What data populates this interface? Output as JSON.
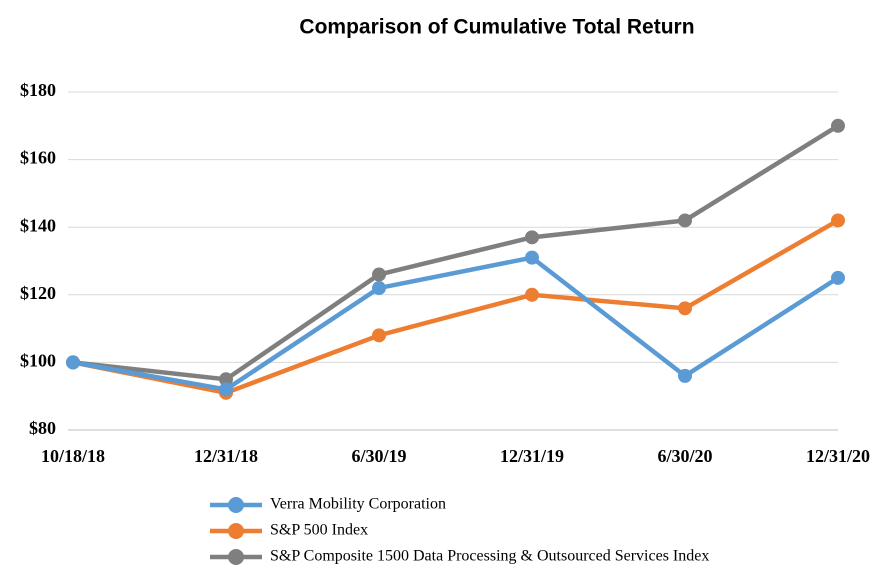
{
  "chart_data": {
    "type": "line",
    "title": "Comparison of Cumulative Total Return",
    "categories": [
      "10/18/18",
      "12/31/18",
      "6/30/19",
      "12/31/19",
      "6/30/20",
      "12/31/20"
    ],
    "series": [
      {
        "name": "Verra Mobility Corporation",
        "color": "#5b9bd5",
        "values": [
          100,
          92,
          122,
          131,
          96,
          125
        ]
      },
      {
        "name": "S&P 500 Index",
        "color": "#ed7d31",
        "values": [
          100,
          91,
          108,
          120,
          116,
          142
        ]
      },
      {
        "name": "S&P Composite 1500 Data Processing & Outsourced Services Index",
        "color": "#7f7f7f",
        "values": [
          100,
          95,
          126,
          137,
          142,
          170
        ]
      }
    ],
    "ylim": [
      80,
      180
    ],
    "yticks": [
      {
        "value": 80,
        "label": "$80"
      },
      {
        "value": 100,
        "label": "$100"
      },
      {
        "value": 120,
        "label": "$120"
      },
      {
        "value": 140,
        "label": "$140"
      },
      {
        "value": 160,
        "label": "$160"
      },
      {
        "value": 180,
        "label": "$180"
      }
    ],
    "grid": true
  }
}
